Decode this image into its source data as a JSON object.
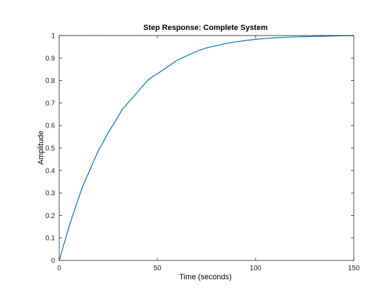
{
  "chart_data": {
    "type": "line",
    "title": "Step Response: Complete System",
    "xlabel": "Time (seconds)",
    "ylabel": "Amplitude",
    "xlim": [
      0,
      150
    ],
    "ylim": [
      0,
      1
    ],
    "xticks": [
      0,
      50,
      100,
      150
    ],
    "yticks": [
      0,
      0.1,
      0.2,
      0.3,
      0.4,
      0.5,
      0.6,
      0.7,
      0.8,
      0.9,
      1
    ],
    "xtick_labels": [
      "0",
      "50",
      "100",
      "150"
    ],
    "ytick_labels": [
      "0",
      "0.1",
      "0.2",
      "0.3",
      "0.4",
      "0.5",
      "0.6",
      "0.7",
      "0.8",
      "0.9",
      "1"
    ],
    "grid": false,
    "series": [
      {
        "color": "#0072bd",
        "x": [
          0,
          2,
          5,
          8,
          10,
          12,
          15,
          18,
          20,
          22,
          25,
          28,
          30,
          32,
          35,
          38,
          40,
          42,
          45,
          48,
          50,
          55,
          60,
          65,
          70,
          75,
          80,
          85,
          90,
          95,
          100,
          105,
          110,
          115,
          120,
          125,
          130,
          135,
          140,
          145,
          150
        ],
        "y": [
          0,
          0.06,
          0.15,
          0.23,
          0.28,
          0.33,
          0.39,
          0.45,
          0.49,
          0.52,
          0.57,
          0.61,
          0.64,
          0.67,
          0.7,
          0.73,
          0.75,
          0.77,
          0.8,
          0.82,
          0.83,
          0.86,
          0.89,
          0.91,
          0.93,
          0.945,
          0.955,
          0.965,
          0.972,
          0.978,
          0.983,
          0.987,
          0.99,
          0.992,
          0.994,
          0.995,
          0.996,
          0.997,
          0.998,
          0.999,
          0.999
        ]
      }
    ],
    "reference_line": {
      "y": 1,
      "color": "#000000",
      "style": "dotted"
    },
    "colors": {
      "axes": "#262626",
      "background": "#ffffff"
    }
  }
}
